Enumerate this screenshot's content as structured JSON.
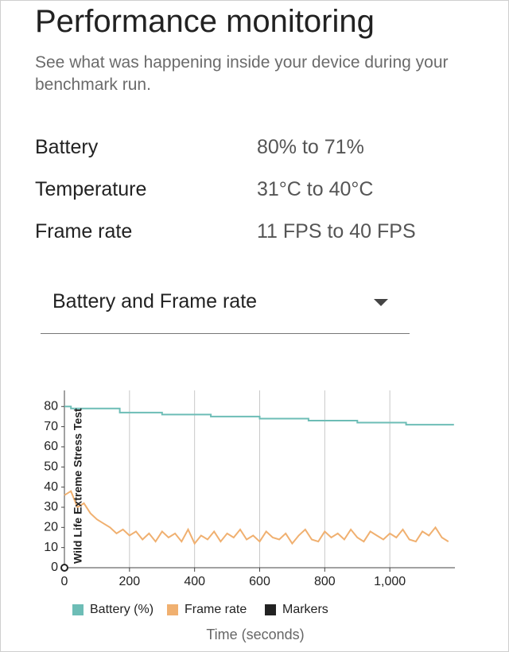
{
  "header": {
    "title": "Performance monitoring",
    "subtitle": "See what was happening inside your device during your benchmark run."
  },
  "stats": [
    {
      "label": "Battery",
      "value": "80% to 71%"
    },
    {
      "label": "Temperature",
      "value": "31°C to 40°C"
    },
    {
      "label": "Frame rate",
      "value": "11 FPS to 40 FPS"
    }
  ],
  "dropdown": {
    "label": "Battery and Frame rate"
  },
  "chart_data": {
    "type": "line",
    "x_label": "Time (seconds)",
    "xlim": [
      0,
      1200
    ],
    "ylim": [
      0,
      88
    ],
    "xticks": [
      0,
      200,
      400,
      600,
      800,
      {
        "value": 1000,
        "label": "1,000"
      }
    ],
    "yticks": [
      0,
      10,
      20,
      30,
      40,
      50,
      60,
      70,
      80
    ],
    "grid": "x",
    "series": [
      {
        "name": "Battery (%)",
        "color": "#6dbdb6",
        "x": [
          0,
          20,
          20,
          170,
          170,
          300,
          300,
          450,
          450,
          600,
          600,
          750,
          750,
          900,
          900,
          1050,
          1050,
          1197
        ],
        "values": [
          80,
          80,
          79,
          79,
          77,
          77,
          76,
          76,
          75,
          75,
          74,
          74,
          73,
          73,
          72,
          72,
          71,
          71
        ]
      },
      {
        "name": "Frame rate",
        "color": "#f0b070",
        "x": [
          0,
          20,
          40,
          60,
          80,
          100,
          120,
          140,
          160,
          180,
          200,
          220,
          240,
          260,
          280,
          300,
          320,
          340,
          360,
          380,
          400,
          420,
          440,
          460,
          480,
          500,
          520,
          540,
          560,
          580,
          600,
          620,
          640,
          660,
          680,
          700,
          720,
          740,
          760,
          780,
          800,
          820,
          840,
          860,
          880,
          900,
          920,
          940,
          960,
          980,
          1000,
          1020,
          1040,
          1060,
          1080,
          1100,
          1120,
          1140,
          1160,
          1180
        ],
        "values": [
          36,
          38,
          30,
          32,
          27,
          24,
          22,
          20,
          17,
          19,
          16,
          18,
          14,
          17,
          13,
          18,
          15,
          17,
          13,
          19,
          12,
          16,
          14,
          18,
          13,
          17,
          15,
          19,
          14,
          16,
          13,
          18,
          15,
          14,
          17,
          12,
          16,
          19,
          14,
          13,
          18,
          15,
          17,
          14,
          19,
          15,
          13,
          18,
          16,
          14,
          17,
          15,
          19,
          14,
          13,
          18,
          16,
          20,
          15,
          13
        ]
      },
      {
        "name": "Markers",
        "color": "#222222",
        "type": "marker",
        "x": [
          0
        ],
        "values": [
          0
        ],
        "labels": [
          "Wild Life Extreme Stress Test"
        ]
      }
    ]
  }
}
